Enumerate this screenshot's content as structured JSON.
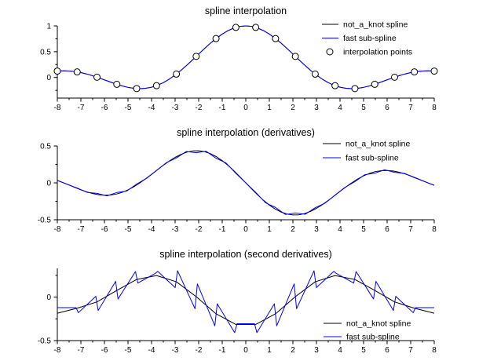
{
  "figure": {
    "background": "#ffffff",
    "axis_color": "#000000"
  },
  "chart_data": [
    {
      "type": "line",
      "title": "spline interpolation",
      "xlim": [
        -8,
        8
      ],
      "ylim": [
        -0.4,
        1.0
      ],
      "xticks": [
        -8,
        -7,
        -6,
        -5,
        -4,
        -3,
        -2,
        -1,
        0,
        1,
        2,
        3,
        4,
        5,
        6,
        7,
        8
      ],
      "yticks": [
        1,
        0.5,
        0
      ],
      "yminor": [
        0.75,
        0.25,
        -0.25
      ],
      "legend_position": "upper-right",
      "series": [
        {
          "name": "not_a_knot spline",
          "color": "#000000",
          "x0": -8,
          "dx": 0.25,
          "y": [
            0.1237,
            0.1282,
            0.1251,
            0.1136,
            0.0939,
            0.0667,
            0.0331,
            -0.0054,
            -0.0466,
            -0.0884,
            -0.1283,
            -0.1636,
            -0.1918,
            -0.2104,
            -0.2172,
            -0.2106,
            -0.1892,
            -0.1524,
            -0.1002,
            -0.0333,
            0.047,
            0.1388,
            0.2394,
            0.3458,
            0.4546,
            0.5623,
            0.665,
            0.7592,
            0.8415,
            0.9089,
            0.9588,
            0.9896,
            1.0,
            0.9896,
            0.9588,
            0.9089,
            0.8415,
            0.7592,
            0.665,
            0.5623,
            0.4546,
            0.3458,
            0.2394,
            0.1388,
            0.047,
            -0.0333,
            -0.1002,
            -0.1524,
            -0.1892,
            -0.2106,
            -0.2172,
            -0.2104,
            -0.1918,
            -0.1636,
            -0.1283,
            -0.0884,
            -0.0466,
            -0.0054,
            0.0331,
            0.0667,
            0.0939,
            0.1136,
            0.1251,
            0.1282,
            0.1237
          ]
        },
        {
          "name": "fast sub-spline",
          "color": "#0000ff",
          "y_ref": 0
        }
      ],
      "markers": {
        "name": "interpolation points",
        "color": "#000000",
        "radius": 4,
        "x": [
          -8,
          -7.158,
          -6.316,
          -5.474,
          -4.632,
          -3.789,
          -2.947,
          -2.105,
          -1.263,
          -0.421,
          0.421,
          1.263,
          2.105,
          2.947,
          3.789,
          4.632,
          5.474,
          6.316,
          7.158,
          8
        ],
        "y": [
          0.1237,
          0.1072,
          0.0052,
          -0.1322,
          -0.2152,
          -0.1593,
          0.0655,
          0.4089,
          0.7538,
          0.9707,
          0.9707,
          0.7538,
          0.4089,
          0.0655,
          -0.1593,
          -0.2152,
          -0.1322,
          0.0052,
          0.1072,
          0.1237
        ]
      }
    },
    {
      "type": "line",
      "title": "spline interpolation (derivatives)",
      "xlim": [
        -8,
        8
      ],
      "ylim": [
        -0.5,
        0.5
      ],
      "xticks": [
        -8,
        -7,
        -6,
        -5,
        -4,
        -3,
        -2,
        -1,
        0,
        1,
        2,
        3,
        4,
        5,
        6,
        7,
        8
      ],
      "yticks": [
        0.5,
        0,
        -0.5
      ],
      "yminor": [
        0.25,
        -0.25
      ],
      "legend_position": "upper-right",
      "series": [
        {
          "name": "not_a_knot spline",
          "color": "#000000",
          "x0": -8,
          "dx": 0.25,
          "y": [
            0.0337,
            0.0036,
            -0.0295,
            -0.063,
            -0.0943,
            -0.1224,
            -0.1452,
            -0.1608,
            -0.1678,
            -0.1652,
            -0.1522,
            -0.1287,
            -0.0951,
            -0.0522,
            -0.0014,
            0.0554,
            0.1161,
            0.1782,
            0.2389,
            0.2956,
            0.3457,
            0.3866,
            0.4162,
            0.4329,
            0.4354,
            0.4232,
            0.3962,
            0.3551,
            0.3012,
            0.2362,
            0.1625,
            0.0828,
            0.0,
            -0.0828,
            -0.1625,
            -0.2362,
            -0.3012,
            -0.3551,
            -0.3962,
            -0.4232,
            -0.4354,
            -0.4329,
            -0.4162,
            -0.3866,
            -0.3457,
            -0.2956,
            -0.2389,
            -0.1782,
            -0.1161,
            -0.0554,
            0.0014,
            0.0522,
            0.0951,
            0.1287,
            0.1522,
            0.1652,
            0.1678,
            0.1608,
            0.1452,
            0.1224,
            0.0943,
            0.063,
            0.0295,
            -0.0036,
            -0.0337
          ]
        },
        {
          "name": "fast sub-spline",
          "color": "#0000ff",
          "xy": [
            [
              -8,
              0.0313
            ],
            [
              -7.579,
              -0.0195
            ],
            [
              -7.158,
              -0.0704
            ],
            [
              -6.737,
              -0.1287
            ],
            [
              -6.316,
              -0.1422
            ],
            [
              -5.895,
              -0.1765
            ],
            [
              -5.474,
              -0.1308
            ],
            [
              -5.053,
              -0.1111
            ],
            [
              -4.632,
              -0.016
            ],
            [
              -4.211,
              0.062
            ],
            [
              -3.789,
              0.1667
            ],
            [
              -3.368,
              0.2743
            ],
            [
              -2.947,
              0.3373
            ],
            [
              -2.526,
              0.4251
            ],
            [
              -2.105,
              0.4087
            ],
            [
              -1.684,
              0.4288
            ],
            [
              -1.263,
              0.3336
            ],
            [
              -0.842,
              0.2708
            ],
            [
              -0.421,
              0.1288
            ],
            [
              0,
              0
            ],
            [
              0.421,
              -0.1288
            ],
            [
              0.842,
              -0.2708
            ],
            [
              1.263,
              -0.3336
            ],
            [
              1.684,
              -0.4288
            ],
            [
              2.105,
              -0.4087
            ],
            [
              2.526,
              -0.4251
            ],
            [
              2.947,
              -0.3373
            ],
            [
              3.368,
              -0.2743
            ],
            [
              3.789,
              -0.1667
            ],
            [
              4.211,
              -0.062
            ],
            [
              4.632,
              0.016
            ],
            [
              5.053,
              0.1111
            ],
            [
              5.474,
              0.1308
            ],
            [
              5.895,
              0.1765
            ],
            [
              6.316,
              0.1422
            ],
            [
              6.737,
              0.1287
            ],
            [
              7.158,
              0.0704
            ],
            [
              7.579,
              0.0195
            ],
            [
              8,
              -0.0313
            ]
          ]
        }
      ]
    },
    {
      "type": "line",
      "title": "spline interpolation (second derivatives)",
      "xlim": [
        -8,
        8
      ],
      "ylim": [
        -0.5,
        0.33
      ],
      "xticks": [
        -8,
        -7,
        -6,
        -5,
        -4,
        -3,
        -2,
        -1,
        0,
        1,
        2,
        3,
        4,
        5,
        6,
        7,
        8
      ],
      "yticks": [
        0,
        -0.5
      ],
      "yminor": [
        0.25,
        -0.25
      ],
      "legend_position": "lower-right",
      "series": [
        {
          "name": "not_a_knot spline",
          "color": "#000000",
          "xy": [
            [
              -8,
              -0.185
            ],
            [
              -7.158,
              -0.128
            ],
            [
              -6.316,
              -0.055
            ],
            [
              -5.474,
              0.077
            ],
            [
              -4.632,
              0.203
            ],
            [
              -3.789,
              0.248
            ],
            [
              -2.947,
              0.176
            ],
            [
              -2.105,
              0.005
            ],
            [
              -1.263,
              -0.192
            ],
            [
              -0.421,
              -0.315
            ],
            [
              0.421,
              -0.315
            ],
            [
              1.263,
              -0.192
            ],
            [
              2.105,
              0.005
            ],
            [
              2.947,
              0.176
            ],
            [
              3.789,
              0.248
            ],
            [
              4.632,
              0.203
            ],
            [
              5.474,
              0.077
            ],
            [
              6.316,
              -0.055
            ],
            [
              7.158,
              -0.128
            ],
            [
              8,
              -0.185
            ]
          ]
        },
        {
          "name": "fast sub-spline",
          "color": "#0000ff",
          "xy": [
            [
              -8,
              -0.1207
            ],
            [
              -7.208,
              -0.1207
            ],
            [
              -7.108,
              -0.1791
            ],
            [
              -6.366,
              0.0085
            ],
            [
              -6.266,
              -0.1538
            ],
            [
              -5.524,
              0.1807
            ],
            [
              -5.424,
              -0.0213
            ],
            [
              -4.682,
              0.2939
            ],
            [
              -4.582,
              0.1613
            ],
            [
              -3.839,
              0.2726
            ],
            [
              -3.739,
              0.2961
            ],
            [
              -2.997,
              0.1092
            ],
            [
              -2.897,
              0.303
            ],
            [
              -2.155,
              -0.1335
            ],
            [
              -2.055,
              0.1523
            ],
            [
              -1.313,
              -0.3307
            ],
            [
              -1.213,
              -0.0775
            ],
            [
              -0.471,
              -0.4089
            ],
            [
              -0.371,
              -0.3059
            ],
            [
              0.371,
              -0.3059
            ],
            [
              0.471,
              -0.4089
            ],
            [
              1.213,
              -0.0775
            ],
            [
              1.313,
              -0.3307
            ],
            [
              2.055,
              0.1523
            ],
            [
              2.155,
              -0.1335
            ],
            [
              2.897,
              0.303
            ],
            [
              2.997,
              0.1092
            ],
            [
              3.739,
              0.2961
            ],
            [
              3.839,
              0.2726
            ],
            [
              4.582,
              0.1613
            ],
            [
              4.682,
              0.2939
            ],
            [
              5.424,
              -0.0213
            ],
            [
              5.524,
              0.1807
            ],
            [
              6.266,
              -0.1538
            ],
            [
              6.366,
              0.0085
            ],
            [
              7.108,
              -0.1791
            ],
            [
              7.208,
              -0.1207
            ],
            [
              8,
              -0.1207
            ]
          ]
        }
      ]
    }
  ]
}
